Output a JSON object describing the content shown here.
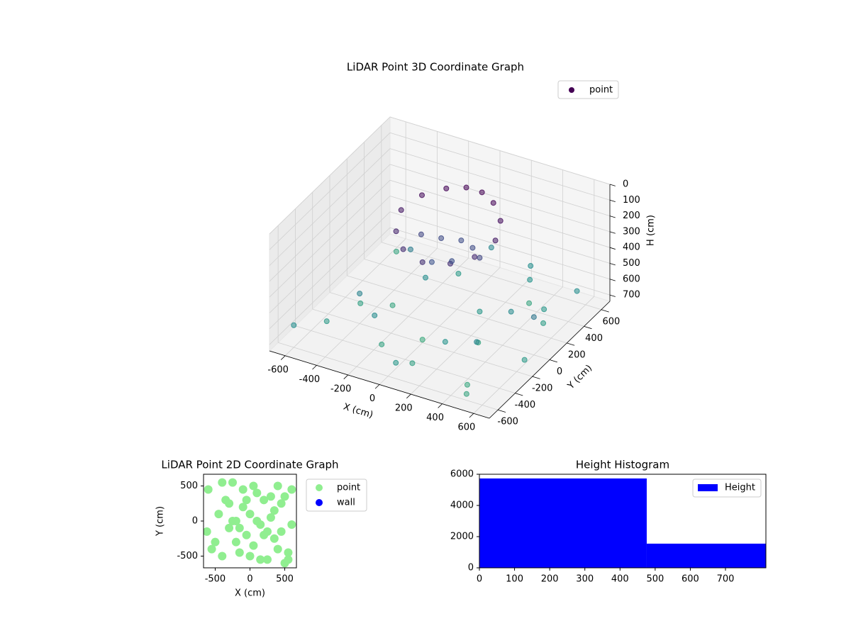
{
  "chart_data": [
    {
      "type": "scatter3d",
      "title": "LiDAR Point 3D Coordinate Graph",
      "x_label": "X (cm)",
      "y_label": "Y (cm)",
      "z_label": "H (cm)",
      "xlim": [
        -700,
        700
      ],
      "ylim": [
        -700,
        700
      ],
      "zlim": [
        740,
        0
      ],
      "xticks": [
        -600,
        -400,
        -200,
        0,
        200,
        400,
        600
      ],
      "yticks": [
        -600,
        -400,
        -200,
        0,
        200,
        400,
        600
      ],
      "zticks": [
        0,
        100,
        200,
        300,
        400,
        500,
        600,
        700
      ],
      "colormap": "viridis",
      "series": [
        {
          "name": "point",
          "color": "#440154",
          "x": [
            -300,
            -250,
            -150,
            -50,
            50,
            150,
            250,
            300,
            250,
            150,
            0,
            -150,
            -250,
            -200,
            -100,
            0,
            100,
            200,
            -50,
            50,
            -600,
            -500,
            -400,
            -300,
            -200,
            -100,
            0,
            100,
            200,
            300,
            400,
            500,
            600,
            -550,
            -350,
            -150,
            50,
            250,
            450,
            650,
            600,
            500,
            400,
            300,
            -450,
            -250,
            200,
            350,
            550,
            0
          ],
          "y": [
            100,
            250,
            350,
            400,
            400,
            350,
            250,
            100,
            -50,
            -150,
            -200,
            -150,
            -50,
            150,
            200,
            250,
            200,
            100,
            0,
            50,
            -600,
            -400,
            -200,
            0,
            200,
            400,
            600,
            -500,
            -300,
            -100,
            100,
            300,
            500,
            500,
            300,
            -400,
            -600,
            600,
            -500,
            -200,
            0,
            -600,
            -300,
            500,
            -100,
            -300,
            100,
            400,
            200,
            -200
          ],
          "z": [
            150,
            120,
            100,
            90,
            90,
            100,
            130,
            160,
            200,
            220,
            230,
            220,
            190,
            300,
            320,
            330,
            320,
            300,
            350,
            340,
            600,
            650,
            550,
            700,
            600,
            650,
            560,
            680,
            620,
            700,
            580,
            640,
            600,
            700,
            520,
            690,
            640,
            600,
            710,
            650,
            500,
            700,
            560,
            620,
            680,
            590,
            640,
            700,
            660,
            720
          ]
        }
      ]
    },
    {
      "type": "scatter",
      "title": "LiDAR Point 2D Coordinate Graph",
      "x_label": "X (cm)",
      "y_label": "Y (cm)",
      "xlim": [
        -668,
        668
      ],
      "ylim": [
        -667,
        667
      ],
      "xticks": [
        -500,
        0,
        500
      ],
      "yticks": [
        -500,
        0,
        500
      ],
      "series": [
        {
          "name": "point",
          "color": "#90ee90",
          "x": [
            -600,
            -500,
            -450,
            -400,
            -350,
            -300,
            -250,
            -200,
            -150,
            -100,
            -50,
            0,
            50,
            100,
            150,
            200,
            250,
            300,
            350,
            400,
            450,
            500,
            550,
            600,
            -300,
            -200,
            -100,
            0,
            100,
            200,
            300,
            400,
            -400,
            -250,
            -50,
            150,
            350,
            500,
            -150,
            50,
            250,
            450,
            -550,
            600,
            -620,
            550
          ],
          "y": [
            450,
            -300,
            100,
            -500,
            300,
            -100,
            550,
            0,
            -450,
            200,
            -200,
            100,
            -350,
            400,
            -50,
            300,
            -550,
            50,
            -250,
            500,
            -150,
            350,
            -450,
            -50,
            250,
            -300,
            450,
            -500,
            0,
            -200,
            350,
            -400,
            550,
            0,
            300,
            -550,
            150,
            -600,
            -100,
            500,
            -150,
            250,
            -400,
            450,
            -150,
            -550
          ]
        },
        {
          "name": "wall",
          "color": "#0000ff",
          "x": [],
          "y": []
        }
      ]
    },
    {
      "type": "histogram",
      "title": "Height Histogram",
      "bins": [
        0,
        476,
        815
      ],
      "counts": [
        5730,
        1550
      ],
      "xlim": [
        0,
        815
      ],
      "ylim": [
        0,
        6000
      ],
      "xticks": [
        0,
        100,
        200,
        300,
        400,
        500,
        600,
        700
      ],
      "yticks": [
        0,
        2000,
        4000,
        6000
      ],
      "series_name": "Height",
      "color": "#0000ff"
    }
  ]
}
